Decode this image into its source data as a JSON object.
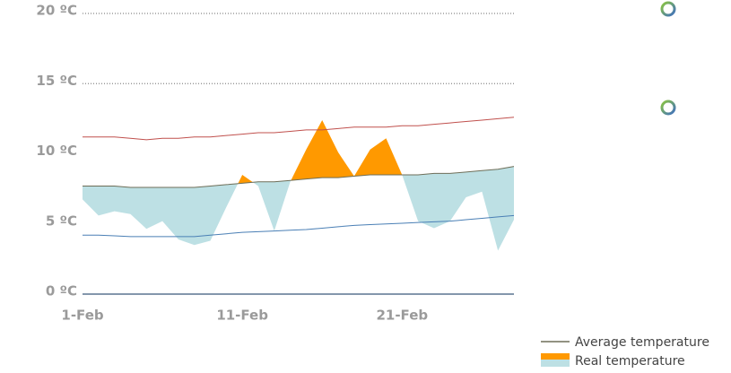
{
  "chart_data": {
    "type": "temperature-band",
    "x": [
      1,
      2,
      3,
      4,
      5,
      6,
      7,
      8,
      9,
      10,
      11,
      12,
      13,
      14,
      15,
      16,
      17,
      18,
      19,
      20,
      21,
      22,
      23,
      24,
      25,
      26,
      27,
      28
    ],
    "xlim": [
      1,
      28
    ],
    "xticks": [
      {
        "value": 1,
        "label": "1-Feb"
      },
      {
        "value": 11,
        "label": "11-Feb"
      },
      {
        "value": 21,
        "label": "21-Feb"
      }
    ],
    "ylim": [
      0,
      20
    ],
    "yticks": [
      {
        "value": 0,
        "label": "0 ºC"
      },
      {
        "value": 5,
        "label": "5 ºC"
      },
      {
        "value": 10,
        "label": "10 ºC"
      },
      {
        "value": 15,
        "label": "15 ºC"
      },
      {
        "value": 20,
        "label": "20 ºC"
      }
    ],
    "grid": "dotted",
    "legend": "bottom-right",
    "series": [
      {
        "name": "Average temperature",
        "color": "#6e6e58",
        "values": [
          7.7,
          7.7,
          7.7,
          7.6,
          7.6,
          7.6,
          7.6,
          7.6,
          7.7,
          7.8,
          7.9,
          8.0,
          8.0,
          8.1,
          8.2,
          8.3,
          8.3,
          8.4,
          8.5,
          8.5,
          8.5,
          8.5,
          8.6,
          8.6,
          8.7,
          8.8,
          8.9,
          9.1
        ]
      },
      {
        "name": "Real temperature",
        "color": "#ff9900",
        "color_below": "#bde0e4",
        "values": [
          6.75,
          5.6,
          5.9,
          5.7,
          4.65,
          5.2,
          3.9,
          3.5,
          3.8,
          6.2,
          8.5,
          7.7,
          4.5,
          8.0,
          10.3,
          12.4,
          10.1,
          8.4,
          10.3,
          11.1,
          8.5,
          5.2,
          4.7,
          5.2,
          6.9,
          7.3,
          3.1,
          5.3
        ]
      },
      {
        "color": "#c0504d",
        "values": [
          11.2,
          11.2,
          11.2,
          11.1,
          11.0,
          11.1,
          11.1,
          11.2,
          11.2,
          11.3,
          11.4,
          11.5,
          11.5,
          11.6,
          11.7,
          11.7,
          11.8,
          11.9,
          11.9,
          11.9,
          12.0,
          12.0,
          12.1,
          12.2,
          12.3,
          12.4,
          12.5,
          12.6
        ]
      },
      {
        "color": "#4a7fb5",
        "values": [
          4.2,
          4.2,
          4.15,
          4.1,
          4.1,
          4.1,
          4.1,
          4.1,
          4.2,
          4.3,
          4.4,
          4.45,
          4.5,
          4.55,
          4.6,
          4.7,
          4.8,
          4.9,
          4.95,
          5.0,
          5.05,
          5.1,
          5.15,
          5.2,
          5.3,
          5.4,
          5.5,
          5.6
        ]
      }
    ]
  }
}
